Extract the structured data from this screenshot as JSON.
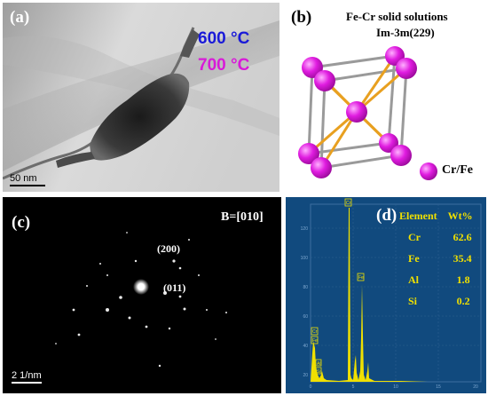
{
  "panel_a": {
    "label": "(a)",
    "temp1": "600 °C",
    "temp2": "700 °C",
    "temp1_color": "#1a1ad8",
    "temp2_color": "#d81ad8",
    "scale_bar": "50 nm"
  },
  "panel_b": {
    "label": "(b)",
    "title_line1": "Fe-Cr solid solutions",
    "title_line2": "Im-3m(229)",
    "atom_label": "Cr/Fe",
    "atom_color": "#e01ce0",
    "bond_color": "#e8a020"
  },
  "panel_c": {
    "label": "(c)",
    "zone_axis": "B=[010]",
    "spot1": "(200)",
    "spot2": "(011)",
    "scale_bar": "2 1/nm"
  },
  "panel_d": {
    "label": "(d)",
    "header_element": "Element",
    "header_wt": "Wt%",
    "rows": [
      {
        "element": "Cr",
        "wt": "62.6"
      },
      {
        "element": "Fe",
        "wt": "35.4"
      },
      {
        "element": "Al",
        "wt": "1.8"
      },
      {
        "element": "Si",
        "wt": "0.2"
      }
    ],
    "yticks": [
      "120",
      "100",
      "80",
      "60",
      "40",
      "20"
    ],
    "xticks": [
      "0",
      "5",
      "10",
      "15",
      "20"
    ],
    "peak_labels": [
      "Cr",
      "Fe",
      "Cr",
      "Fe",
      "Al",
      "Si"
    ],
    "text_color": "#f0e000",
    "bg_color": "#114a7e"
  }
}
